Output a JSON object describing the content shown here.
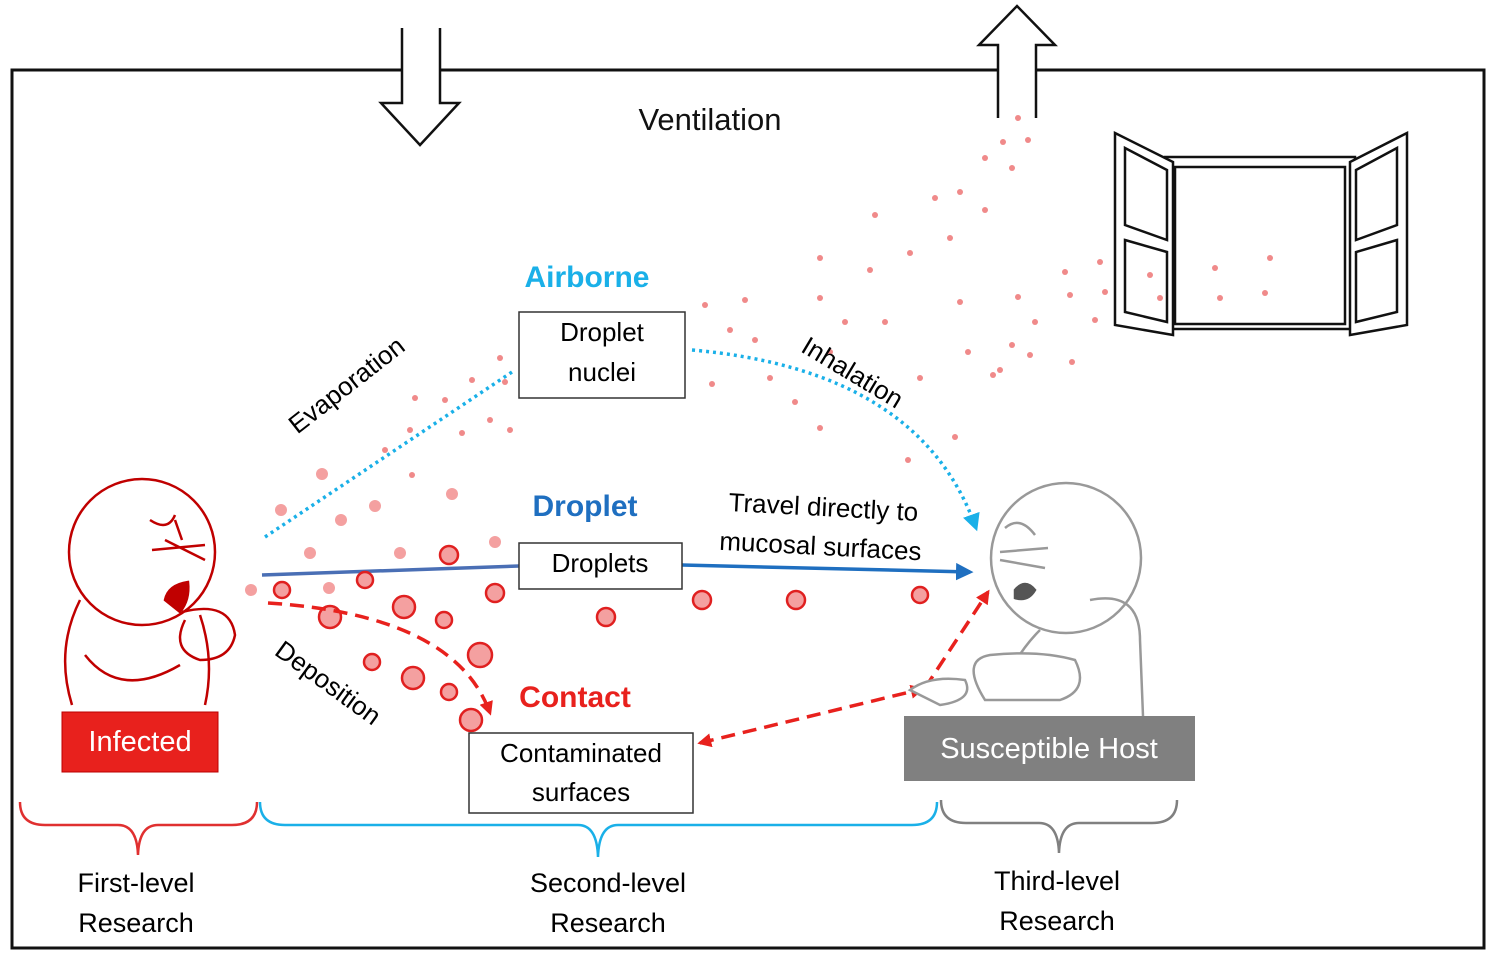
{
  "title": "Ventilation",
  "routes": {
    "airborne": {
      "label": "Airborne",
      "color": "#1ab0e8",
      "box": [
        "Droplet",
        "nuclei"
      ]
    },
    "droplet": {
      "label": "Droplet",
      "color": "#1f6fc0",
      "box": "Droplets"
    },
    "contact": {
      "label": "Contact",
      "color": "#e8211d",
      "box": [
        "Contaminated",
        "surfaces"
      ]
    }
  },
  "process_labels": {
    "evaporation": "Evaporation",
    "inhalation": "Inhalation",
    "travel_line1": "Travel  directly  to",
    "travel_line2": "mucosal surfaces",
    "deposition": "Deposition"
  },
  "actors": {
    "infected": {
      "label": "Infected",
      "color": "#e8211d"
    },
    "host": {
      "label": "Susceptible Host",
      "color": "#808080"
    }
  },
  "levels": [
    {
      "line1": "First-level",
      "line2": "Research",
      "color": "#e03030"
    },
    {
      "line1": "Second-level",
      "line2": "Research",
      "color": "#1ab0e8"
    },
    {
      "line1": "Third-level",
      "line2": "Research",
      "color": "#808080"
    }
  ],
  "icons": [
    "arrow-down-icon",
    "arrow-up-icon",
    "window-icon",
    "infected-person-icon",
    "host-person-icon"
  ]
}
